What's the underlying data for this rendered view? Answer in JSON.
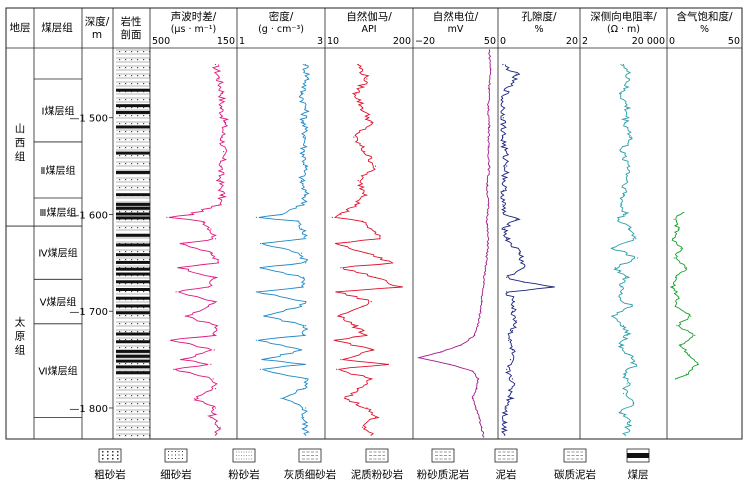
{
  "chart_data": {
    "type": "line",
    "title": "",
    "depth_range": [
      1430,
      1830
    ],
    "depth_ticks": [
      {
        "value": 1500,
        "label": "1 500"
      },
      {
        "value": 1600,
        "label": "1 600"
      },
      {
        "value": 1700,
        "label": "1 700"
      },
      {
        "value": 1800,
        "label": "1 800"
      }
    ],
    "columns": {
      "strata": "地层",
      "coal_group": "煤层组",
      "depth": [
        "深度/",
        "m"
      ],
      "lithology": [
        "岩性",
        "剖面"
      ]
    },
    "formations": [
      {
        "name": "山西组",
        "top": 1430,
        "bottom": 1612
      },
      {
        "name": "太原组",
        "top": 1612,
        "bottom": 1830
      }
    ],
    "coal_groups": [
      {
        "name": "Ⅰ煤层组",
        "top": 1460,
        "bottom": 1525
      },
      {
        "name": "Ⅱ煤层组",
        "top": 1525,
        "bottom": 1583
      },
      {
        "name": "Ⅲ煤层组",
        "top": 1583,
        "bottom": 1612
      },
      {
        "name": "Ⅳ煤层组",
        "top": 1612,
        "bottom": 1667
      },
      {
        "name": "Ⅴ煤层组",
        "top": 1667,
        "bottom": 1713
      },
      {
        "name": "Ⅵ煤层组",
        "top": 1713,
        "bottom": 1810
      }
    ],
    "series": [
      {
        "id": "ac",
        "name_line1": "声波时差/",
        "name_line2": "(μs · m⁻¹)",
        "min_label": "500",
        "max_label": "150",
        "range": [
          500,
          150
        ],
        "color": "#e0177f",
        "depth": [
          1445,
          1460,
          1475,
          1490,
          1505,
          1520,
          1535,
          1550,
          1565,
          1580,
          1590,
          1600,
          1603,
          1607,
          1615,
          1625,
          1630,
          1640,
          1650,
          1655,
          1665,
          1675,
          1680,
          1690,
          1695,
          1705,
          1715,
          1725,
          1730,
          1740,
          1750,
          1755,
          1760,
          1770,
          1780,
          1790,
          1800,
          1810,
          1820,
          1828
        ],
        "values": [
          230,
          215,
          200,
          205,
          190,
          200,
          195,
          205,
          210,
          200,
          215,
          340,
          440,
          280,
          250,
          230,
          370,
          250,
          220,
          380,
          240,
          260,
          400,
          240,
          260,
          360,
          225,
          240,
          420,
          235,
          380,
          250,
          410,
          240,
          230,
          320,
          230,
          250,
          210,
          230
        ]
      },
      {
        "id": "den",
        "name_line1": "密度/",
        "name_line2": "(g · cm⁻³)",
        "min_label": "1",
        "max_label": "3",
        "range": [
          1,
          3
        ],
        "color": "#1e88c8",
        "depth": [
          1445,
          1460,
          1475,
          1490,
          1505,
          1520,
          1535,
          1550,
          1565,
          1580,
          1590,
          1600,
          1603,
          1607,
          1615,
          1625,
          1630,
          1640,
          1650,
          1655,
          1665,
          1675,
          1680,
          1690,
          1695,
          1705,
          1715,
          1725,
          1730,
          1740,
          1750,
          1755,
          1760,
          1770,
          1780,
          1790,
          1800,
          1810,
          1820,
          1828
        ],
        "values": [
          2.6,
          2.65,
          2.5,
          2.6,
          2.55,
          2.6,
          2.55,
          2.6,
          2.5,
          2.6,
          2.55,
          2.0,
          1.4,
          2.4,
          2.5,
          2.6,
          1.5,
          2.5,
          2.6,
          1.5,
          2.55,
          2.5,
          1.4,
          2.6,
          2.5,
          1.6,
          2.6,
          2.55,
          1.4,
          2.5,
          1.6,
          2.55,
          1.5,
          2.6,
          2.55,
          2.0,
          2.6,
          2.55,
          2.6,
          2.6
        ]
      },
      {
        "id": "gr",
        "name_line1": "自然伽马/",
        "name_line2": "API",
        "min_label": "10",
        "max_label": "200",
        "range": [
          10,
          200
        ],
        "color": "#e0102a",
        "depth": [
          1445,
          1460,
          1475,
          1490,
          1505,
          1520,
          1535,
          1550,
          1565,
          1580,
          1590,
          1600,
          1603,
          1607,
          1615,
          1625,
          1630,
          1640,
          1650,
          1655,
          1665,
          1675,
          1680,
          1690,
          1695,
          1705,
          1715,
          1725,
          1730,
          1740,
          1750,
          1755,
          1760,
          1770,
          1780,
          1790,
          1800,
          1810,
          1820,
          1828
        ],
        "values": [
          80,
          100,
          75,
          90,
          110,
          70,
          95,
          120,
          80,
          100,
          75,
          40,
          20,
          90,
          110,
          130,
          30,
          100,
          160,
          40,
          120,
          175,
          30,
          110,
          90,
          40,
          70,
          100,
          30,
          110,
          40,
          150,
          30,
          110,
          80,
          50,
          100,
          120,
          90,
          110
        ]
      },
      {
        "id": "sp",
        "name_line1": "自然电位/",
        "name_line2": "mV",
        "min_label": "−20",
        "max_label": "50",
        "range": [
          -20,
          50
        ],
        "color": "#a01a8c",
        "depth": [
          1430,
          1450,
          1470,
          1490,
          1510,
          1530,
          1550,
          1570,
          1590,
          1610,
          1630,
          1650,
          1670,
          1690,
          1700,
          1715,
          1725,
          1735,
          1742,
          1748,
          1755,
          1762,
          1770,
          1780,
          1790,
          1800,
          1810,
          1820,
          1830
        ],
        "values": [
          45,
          46,
          45,
          44,
          45,
          44,
          45,
          43,
          44,
          43,
          44,
          42,
          40,
          38,
          37,
          35,
          32,
          20,
          2,
          -18,
          10,
          30,
          35,
          34,
          30,
          33,
          36,
          38,
          40
        ]
      },
      {
        "id": "por",
        "name_line1": "孔隙度/",
        "name_line2": "%",
        "min_label": "0",
        "max_label": "20",
        "range": [
          0,
          20
        ],
        "color": "#1a237e",
        "depth": [
          1445,
          1455,
          1480,
          1500,
          1520,
          1550,
          1575,
          1590,
          1600,
          1605,
          1615,
          1625,
          1640,
          1655,
          1665,
          1670,
          1675,
          1680,
          1690,
          1700,
          1710,
          1720,
          1730,
          1740,
          1750,
          1760,
          1770,
          1790,
          1800,
          1815,
          1828
        ],
        "values": [
          0.5,
          4,
          0.4,
          0.6,
          0.5,
          1.5,
          0.6,
          0.5,
          0.8,
          4,
          1,
          1.5,
          5,
          6,
          1.5,
          6,
          14,
          1.5,
          3.5,
          3,
          4,
          3,
          2,
          3,
          2.5,
          1.5,
          3,
          2.5,
          1.5,
          0.8,
          1
        ]
      },
      {
        "id": "res",
        "name_line1": "深侧向电阻率/",
        "name_line2": "(Ω · m)",
        "min_label": "2",
        "max_label": "20 000",
        "range": [
          2,
          20000
        ],
        "scale": "log",
        "color": "#2a9fa8",
        "depth": [
          1445,
          1460,
          1475,
          1490,
          1505,
          1520,
          1535,
          1550,
          1565,
          1580,
          1590,
          1600,
          1605,
          1615,
          1625,
          1635,
          1645,
          1655,
          1665,
          1675,
          1685,
          1695,
          1705,
          1715,
          1725,
          1735,
          1745,
          1755,
          1765,
          1775,
          1785,
          1795,
          1805,
          1815,
          1828
        ],
        "values": [
          200,
          400,
          150,
          300,
          250,
          500,
          150,
          400,
          300,
          200,
          150,
          250,
          120,
          400,
          800,
          60,
          1000,
          80,
          250,
          150,
          120,
          500,
          60,
          200,
          300,
          150,
          400,
          800,
          250,
          300,
          200,
          600,
          150,
          400,
          250
        ]
      },
      {
        "id": "gas",
        "name_line1": "含气饱和度/",
        "name_line2": "%",
        "min_label": "0",
        "max_label": "50",
        "range": [
          0,
          50
        ],
        "color": "#18a02a",
        "depth": [
          1598,
          1605,
          1615,
          1625,
          1635,
          1645,
          1655,
          1665,
          1675,
          1685,
          1695,
          1705,
          1715,
          1725,
          1735,
          1745,
          1755,
          1765,
          1770
        ],
        "values": [
          10,
          3,
          6,
          2,
          8,
          3,
          12,
          4,
          2,
          6,
          4,
          15,
          5,
          18,
          8,
          14,
          20,
          12,
          4
        ]
      }
    ],
    "legend": [
      {
        "id": "coarse",
        "label": "粗砂岩",
        "pattern": "dots-large"
      },
      {
        "id": "fine",
        "label": "细砂岩",
        "pattern": "dots"
      },
      {
        "id": "silt",
        "label": "粉砂岩",
        "pattern": "silt"
      },
      {
        "id": "grayfine",
        "label": "灰质细砂岩",
        "pattern": "brick-dots"
      },
      {
        "id": "mudsilt",
        "label": "泥质粉砂岩",
        "pattern": "dash-dots"
      },
      {
        "id": "siltmud",
        "label": "粉砂质泥岩",
        "pattern": "dashes-dots"
      },
      {
        "id": "mud",
        "label": "泥岩",
        "pattern": "dashes"
      },
      {
        "id": "carbmud",
        "label": "碳质泥岩",
        "pattern": "dashes-dense"
      },
      {
        "id": "coal",
        "label": "煤层",
        "pattern": "coal"
      }
    ],
    "lithology_coal_depths": [
      1470,
      1486,
      1493,
      1508,
      1535,
      1555,
      1578,
      1588,
      1592,
      1598,
      1602,
      1620,
      1630,
      1640,
      1648,
      1655,
      1660,
      1668,
      1676,
      1685,
      1693,
      1700,
      1722,
      1730,
      1740,
      1745,
      1750,
      1756,
      1762
    ]
  }
}
